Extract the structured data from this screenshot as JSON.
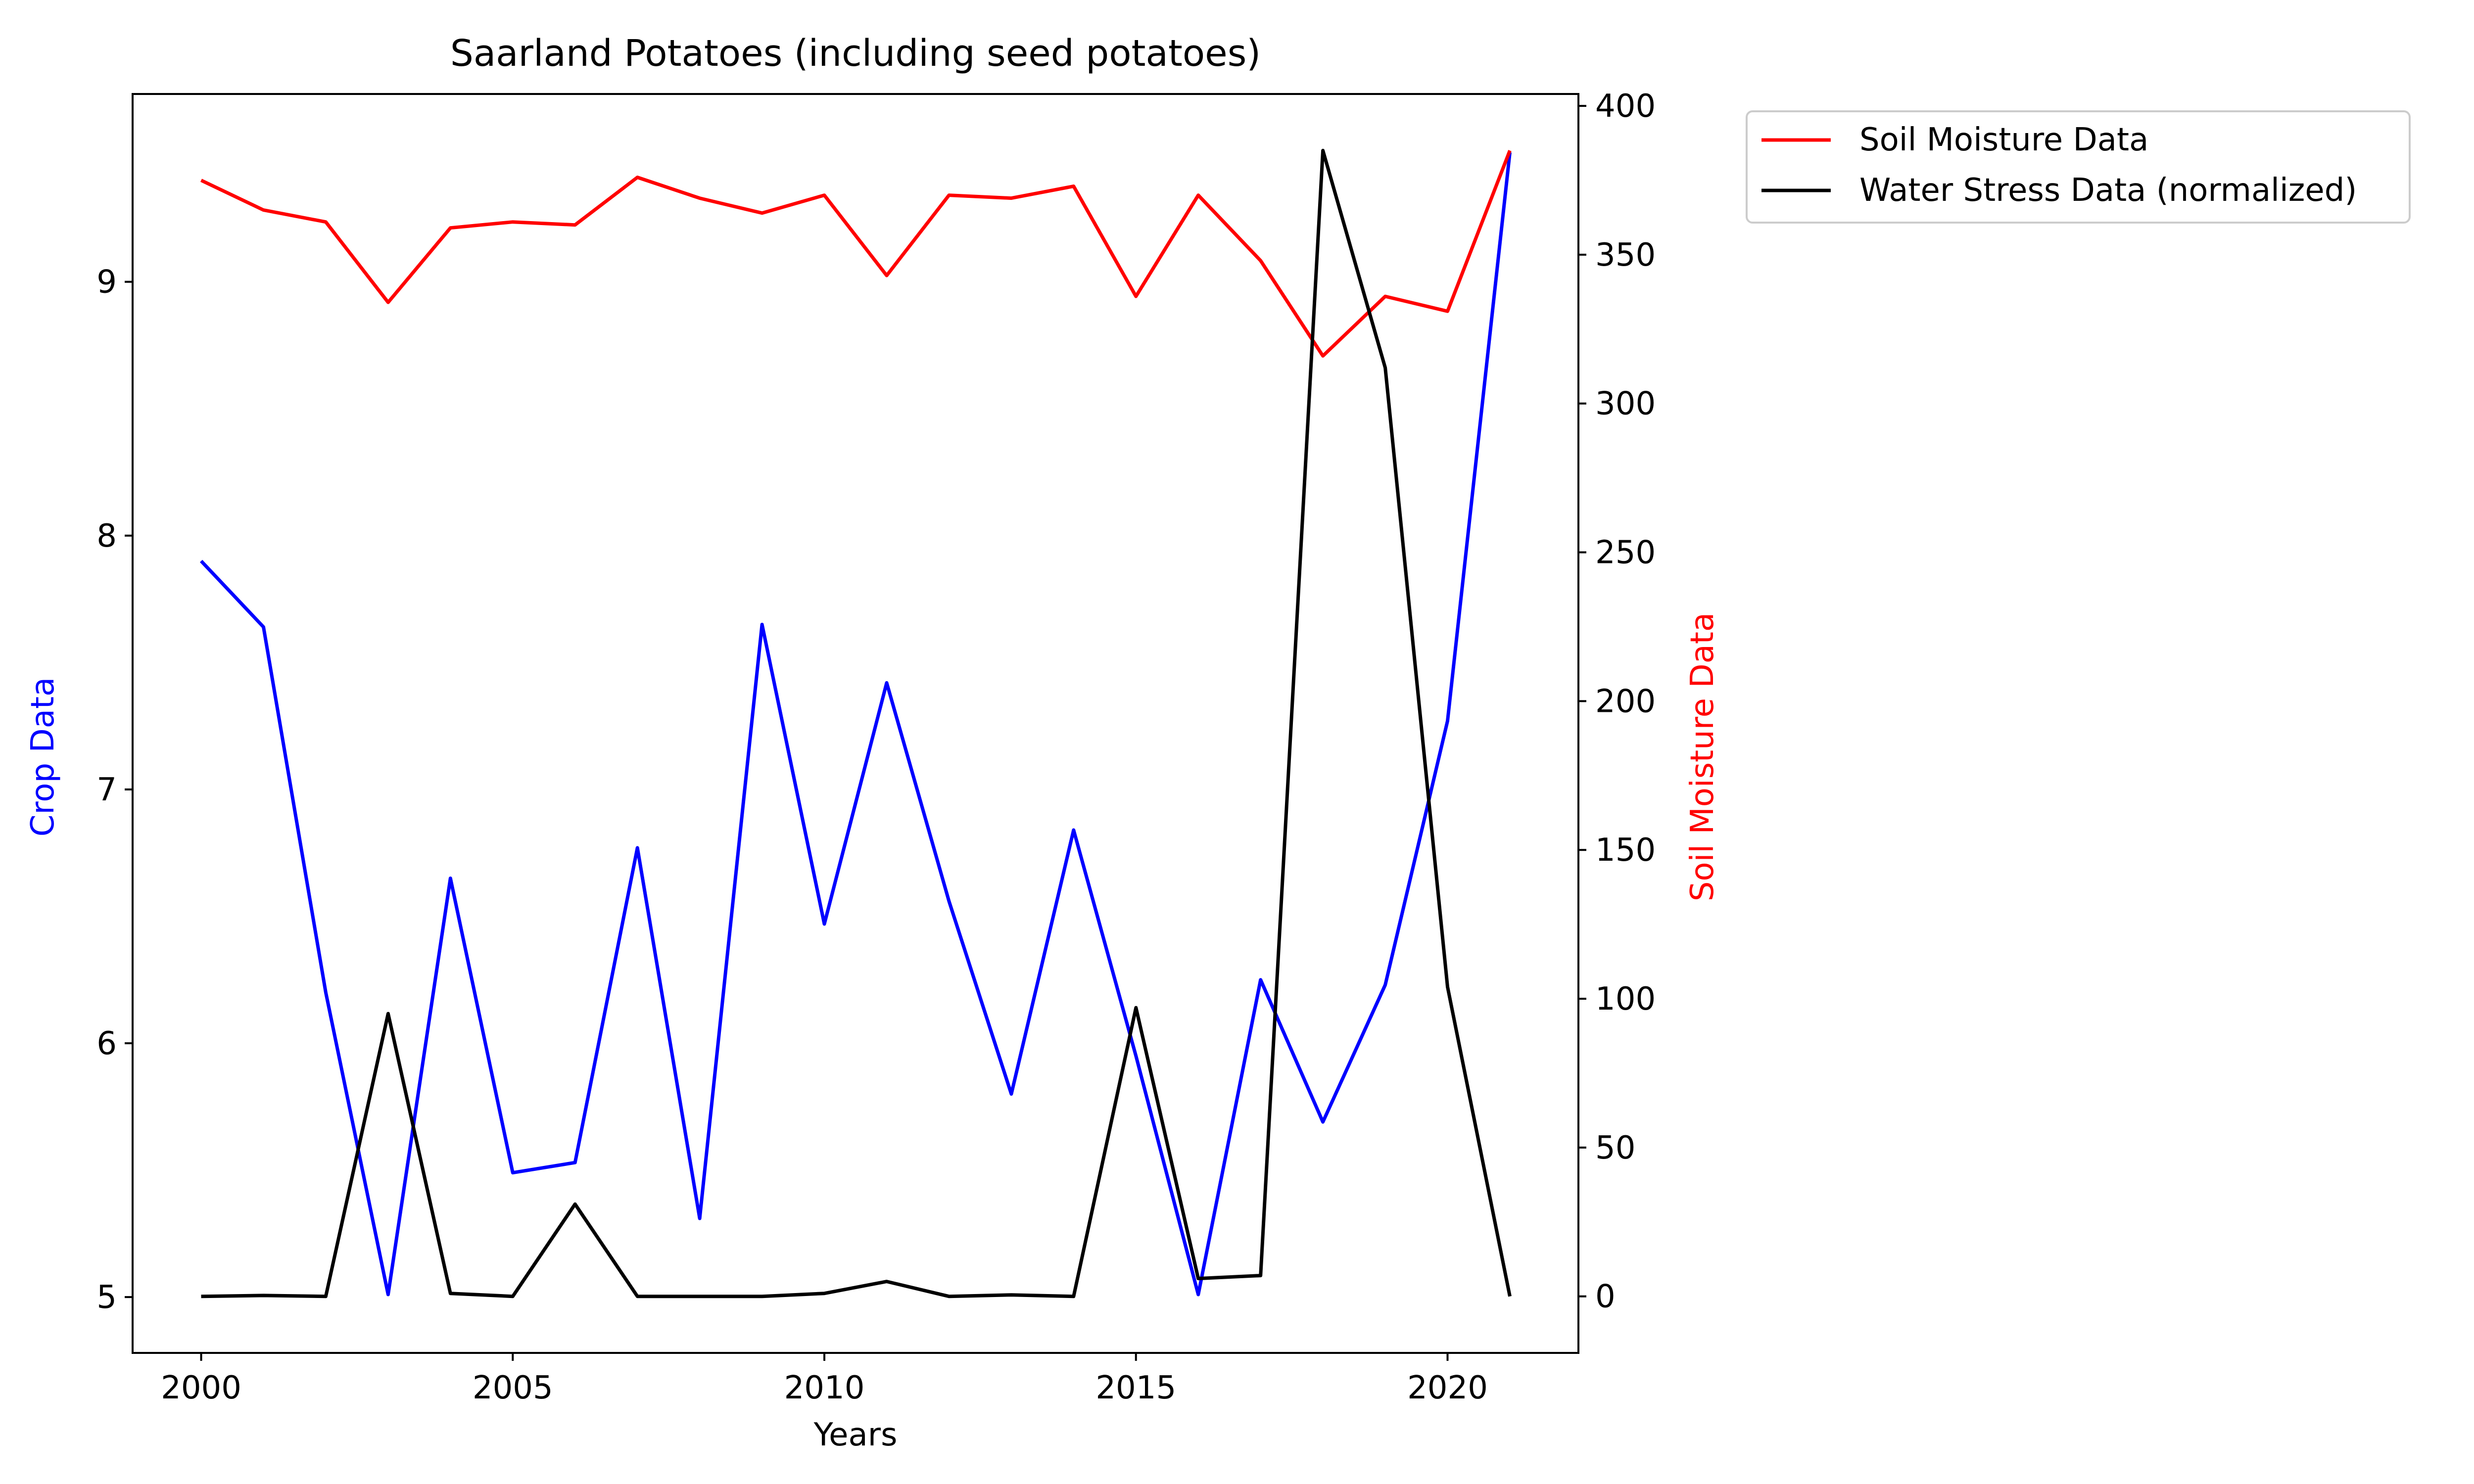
{
  "chart_data": {
    "type": "line",
    "title": "Saarland Potatoes (including seed potatoes)",
    "xlabel": "Years",
    "ylabel_left": "Crop Data",
    "ylabel_right": "Soil Moisture Data",
    "x": [
      2000,
      2001,
      2002,
      2003,
      2004,
      2005,
      2006,
      2007,
      2008,
      2009,
      2010,
      2011,
      2012,
      2013,
      2014,
      2015,
      2016,
      2017,
      2018,
      2019,
      2020,
      2021
    ],
    "xlim": [
      1998.9,
      2022.1
    ],
    "xticks": [
      2000,
      2005,
      2010,
      2015,
      2020
    ],
    "ylim_left": [
      4.78,
      9.74
    ],
    "yticks_left": [
      5,
      6,
      7,
      8,
      9
    ],
    "ylim_right": [
      -19,
      404
    ],
    "yticks_right": [
      0,
      50,
      100,
      150,
      200,
      250,
      300,
      350,
      400
    ],
    "legend_position": "outside-right-top",
    "colors": {
      "crop": "#0000ff",
      "soil": "#ff0000",
      "stress": "#000000",
      "left_axis_label": "#0000ff",
      "right_axis_label": "#ff0000"
    },
    "series": [
      {
        "axis": "left",
        "color": "#0000ff",
        "values": [
          7.9,
          7.64,
          6.2,
          5.01,
          6.65,
          5.49,
          5.53,
          6.77,
          5.31,
          7.65,
          6.47,
          7.42,
          6.56,
          5.8,
          6.84,
          5.95,
          5.01,
          6.25,
          5.69,
          6.23,
          7.27,
          9.51
        ]
      },
      {
        "name": "Soil Moisture Data",
        "axis": "right",
        "color": "#ff0000",
        "values": [
          375,
          365,
          361,
          334,
          359,
          361,
          360,
          376,
          369,
          364,
          370,
          343,
          370,
          369,
          373,
          336,
          370,
          348,
          316,
          336,
          331,
          385
        ]
      },
      {
        "name": "Water Stress Data (normalized)",
        "axis": "right",
        "color": "#000000",
        "values": [
          0,
          0.3,
          0,
          95,
          1,
          0,
          31,
          0,
          0,
          0,
          1,
          5,
          0,
          0.5,
          0,
          97,
          6,
          7,
          385,
          312,
          104,
          0
        ]
      }
    ]
  }
}
